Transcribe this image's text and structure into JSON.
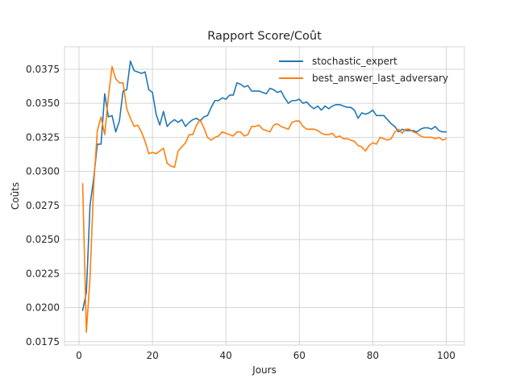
{
  "chart_data": {
    "type": "line",
    "title": "Rapport Score/Coût",
    "xlabel": "Jours",
    "ylabel": "Coûts",
    "xlim": [
      -3.95,
      104.95
    ],
    "ylim": [
      0.01725,
      0.03915
    ],
    "xticks": [
      0,
      20,
      40,
      60,
      80,
      100
    ],
    "xtick_labels": [
      "0",
      "20",
      "40",
      "60",
      "80",
      "100"
    ],
    "yticks": [
      0.0175,
      0.02,
      0.0225,
      0.025,
      0.0275,
      0.03,
      0.0325,
      0.035,
      0.0375
    ],
    "ytick_labels": [
      "0.0175",
      "0.0200",
      "0.0225",
      "0.0250",
      "0.0275",
      "0.0300",
      "0.0325",
      "0.0350",
      "0.0375"
    ],
    "grid": true,
    "legend_position": "top-right",
    "x": [
      1,
      2,
      3,
      4,
      5,
      6,
      7,
      8,
      9,
      10,
      11,
      12,
      13,
      14,
      15,
      16,
      17,
      18,
      19,
      20,
      21,
      22,
      23,
      24,
      25,
      26,
      27,
      28,
      29,
      30,
      31,
      32,
      33,
      34,
      35,
      36,
      37,
      38,
      39,
      40,
      41,
      42,
      43,
      44,
      45,
      46,
      47,
      48,
      49,
      50,
      51,
      52,
      53,
      54,
      55,
      56,
      57,
      58,
      59,
      60,
      61,
      62,
      63,
      64,
      65,
      66,
      67,
      68,
      69,
      70,
      71,
      72,
      73,
      74,
      75,
      76,
      77,
      78,
      79,
      80,
      81,
      82,
      83,
      84,
      85,
      86,
      87,
      88,
      89,
      90,
      91,
      92,
      93,
      94,
      95,
      96,
      97,
      98,
      99,
      100
    ],
    "series": [
      {
        "name": "stochastic_expert",
        "color": "#1f77b4",
        "values": [
          0.0198,
          0.0211,
          0.0275,
          0.0295,
          0.032,
          0.032,
          0.0357,
          0.034,
          0.0341,
          0.0329,
          0.0337,
          0.0359,
          0.036,
          0.0381,
          0.0374,
          0.0373,
          0.0372,
          0.0373,
          0.036,
          0.0358,
          0.0342,
          0.0334,
          0.0344,
          0.0333,
          0.0336,
          0.0338,
          0.0336,
          0.0338,
          0.0333,
          0.0336,
          0.0338,
          0.0339,
          0.0337,
          0.034,
          0.0341,
          0.0347,
          0.0352,
          0.0352,
          0.0354,
          0.0353,
          0.0356,
          0.0356,
          0.0365,
          0.0364,
          0.0362,
          0.0363,
          0.0359,
          0.0359,
          0.0359,
          0.0358,
          0.0357,
          0.0361,
          0.036,
          0.0358,
          0.0359,
          0.0354,
          0.035,
          0.0352,
          0.0352,
          0.0353,
          0.035,
          0.0351,
          0.0348,
          0.0346,
          0.0348,
          0.0345,
          0.0348,
          0.0346,
          0.0348,
          0.0349,
          0.0349,
          0.0348,
          0.0347,
          0.0347,
          0.0345,
          0.0339,
          0.0343,
          0.0342,
          0.0343,
          0.0345,
          0.0341,
          0.0341,
          0.0341,
          0.0338,
          0.0335,
          0.0333,
          0.0329,
          0.0331,
          0.033,
          0.033,
          0.033,
          0.0329,
          0.0331,
          0.0332,
          0.0332,
          0.0331,
          0.0333,
          0.033,
          0.0329,
          0.0329
        ]
      },
      {
        "name": "best_answer_last_adversary",
        "color": "#ff7f0e",
        "values": [
          0.0291,
          0.0182,
          0.0222,
          0.029,
          0.033,
          0.034,
          0.0327,
          0.0355,
          0.0377,
          0.0368,
          0.0365,
          0.0365,
          0.0346,
          0.0339,
          0.0333,
          0.0334,
          0.0329,
          0.0322,
          0.0313,
          0.0314,
          0.0313,
          0.0315,
          0.0317,
          0.0306,
          0.0304,
          0.0303,
          0.0315,
          0.0318,
          0.0321,
          0.0327,
          0.0327,
          0.0334,
          0.0338,
          0.0332,
          0.0325,
          0.0323,
          0.0325,
          0.0326,
          0.0329,
          0.0328,
          0.0327,
          0.0326,
          0.0329,
          0.0329,
          0.0326,
          0.0327,
          0.0333,
          0.0333,
          0.0334,
          0.0331,
          0.033,
          0.0329,
          0.0334,
          0.0335,
          0.0333,
          0.0332,
          0.0331,
          0.0336,
          0.0337,
          0.0337,
          0.0333,
          0.0331,
          0.0331,
          0.0331,
          0.033,
          0.0328,
          0.0327,
          0.0327,
          0.0328,
          0.0325,
          0.0326,
          0.0324,
          0.0324,
          0.0323,
          0.0322,
          0.0319,
          0.0318,
          0.0315,
          0.0319,
          0.0321,
          0.032,
          0.0325,
          0.0324,
          0.0323,
          0.0324,
          0.0329,
          0.0331,
          0.0328,
          0.0331,
          0.0331,
          0.0329,
          0.0328,
          0.0326,
          0.0325,
          0.0325,
          0.0325,
          0.0324,
          0.0325,
          0.0323,
          0.0324
        ]
      }
    ]
  }
}
